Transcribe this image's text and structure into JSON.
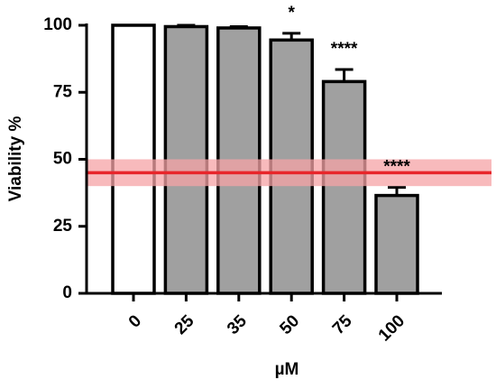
{
  "chart_data": {
    "type": "bar",
    "ylabel": "Viability %",
    "xlabel": "µM",
    "categories": [
      "0",
      "25",
      "35",
      "50",
      "75",
      "100"
    ],
    "values": [
      100,
      99.5,
      99,
      94.5,
      79,
      36.5
    ],
    "errors": [
      0,
      0.5,
      0.5,
      2.5,
      4.5,
      3
    ],
    "colors": [
      "#ffffff",
      "#a0a0a0",
      "#a0a0a0",
      "#a0a0a0",
      "#a0a0a0",
      "#a0a0a0"
    ],
    "annotations": [
      null,
      null,
      null,
      "*",
      "****",
      "****"
    ],
    "reference_line": {
      "value": 45,
      "band": [
        40,
        50
      ],
      "color": "#e8262b",
      "band_color": "#f5a3a5"
    },
    "ylim": [
      0,
      100
    ],
    "yticks": [
      0,
      25,
      50,
      75,
      100
    ]
  }
}
